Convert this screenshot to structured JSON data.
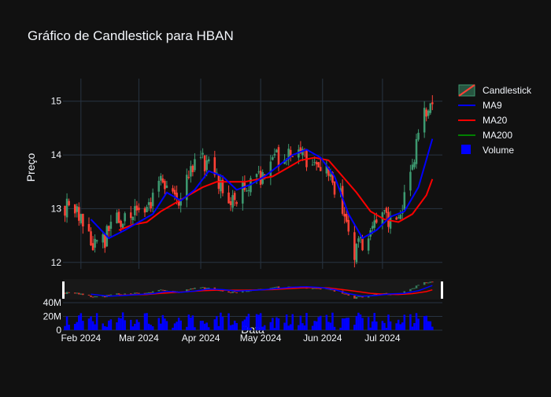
{
  "colors": {
    "background": "#111111",
    "grid": "#283442",
    "text": "#f2f5fa",
    "increasing": "#3d9970",
    "decreasing": "#ff4136",
    "ma9": "#0000ff",
    "ma20": "#ff0000",
    "ma200": "#008000",
    "volume": "#0000ff",
    "rangeslider_bg": "#1f1f1f",
    "handle": "#ffffff"
  },
  "chart_data": {
    "type": "candlestick",
    "title": "Gráfico de Candlestick para HBAN",
    "ylabel": "Preço",
    "xlabel": "Data",
    "ylim": [
      11.88,
      15.42
    ],
    "yticks": [
      "12",
      "13",
      "14",
      "15"
    ],
    "xticks": [
      "Feb 2024",
      "Mar 2024",
      "Apr 2024",
      "May 2024",
      "Jun 2024",
      "Jul 2024"
    ],
    "volume_ticks": [
      "0",
      "20M",
      "40M"
    ],
    "legend": {
      "placement": "right",
      "entries": [
        "Candlestick",
        "MA9",
        "MA20",
        "MA200",
        "Volume"
      ]
    },
    "grid": true,
    "anchors": [
      [
        "2024-01-24",
        13.05
      ],
      [
        "2024-01-29",
        13.05
      ],
      [
        "2024-02-01",
        12.85
      ],
      [
        "2024-02-05",
        12.4
      ],
      [
        "2024-02-12",
        12.35
      ],
      [
        "2024-02-16",
        12.75
      ],
      [
        "2024-02-23",
        12.8
      ],
      [
        "2024-02-29",
        12.95
      ],
      [
        "2024-03-07",
        13.0
      ],
      [
        "2024-03-12",
        13.6
      ],
      [
        "2024-03-15",
        13.3
      ],
      [
        "2024-03-20",
        13.1
      ],
      [
        "2024-03-25",
        13.5
      ],
      [
        "2024-04-01",
        13.95
      ],
      [
        "2024-04-05",
        13.8
      ],
      [
        "2024-04-10",
        13.5
      ],
      [
        "2024-04-16",
        13.1
      ],
      [
        "2024-04-22",
        13.4
      ],
      [
        "2024-04-26",
        13.55
      ],
      [
        "2024-05-01",
        13.6
      ],
      [
        "2024-05-08",
        13.9
      ],
      [
        "2024-05-15",
        14.1
      ],
      [
        "2024-05-20",
        14.2
      ],
      [
        "2024-05-24",
        13.95
      ],
      [
        "2024-05-29",
        13.85
      ],
      [
        "2024-06-03",
        13.7
      ],
      [
        "2024-06-10",
        13.2
      ],
      [
        "2024-06-13",
        12.7
      ],
      [
        "2024-06-17",
        12.2
      ],
      [
        "2024-06-21",
        12.4
      ],
      [
        "2024-06-27",
        12.8
      ],
      [
        "2024-07-03",
        12.8
      ],
      [
        "2024-07-09",
        12.9
      ],
      [
        "2024-07-12",
        13.2
      ],
      [
        "2024-07-17",
        14.0
      ],
      [
        "2024-07-22",
        14.7
      ],
      [
        "2024-07-26",
        15.1
      ]
    ],
    "ma9": [
      [
        "2024-02-06",
        12.8
      ],
      [
        "2024-02-15",
        12.45
      ],
      [
        "2024-02-23",
        12.6
      ],
      [
        "2024-03-01",
        12.75
      ],
      [
        "2024-03-08",
        12.9
      ],
      [
        "2024-03-15",
        13.3
      ],
      [
        "2024-03-22",
        13.15
      ],
      [
        "2024-03-29",
        13.35
      ],
      [
        "2024-04-05",
        13.7
      ],
      [
        "2024-04-12",
        13.6
      ],
      [
        "2024-04-19",
        13.35
      ],
      [
        "2024-04-26",
        13.45
      ],
      [
        "2024-05-03",
        13.6
      ],
      [
        "2024-05-10",
        13.8
      ],
      [
        "2024-05-17",
        14.0
      ],
      [
        "2024-05-24",
        14.1
      ],
      [
        "2024-05-31",
        13.95
      ],
      [
        "2024-06-07",
        13.6
      ],
      [
        "2024-06-14",
        12.9
      ],
      [
        "2024-06-21",
        12.45
      ],
      [
        "2024-06-28",
        12.6
      ],
      [
        "2024-07-05",
        12.85
      ],
      [
        "2024-07-12",
        12.95
      ],
      [
        "2024-07-19",
        13.4
      ],
      [
        "2024-07-26",
        14.3
      ]
    ],
    "ma20": [
      [
        "2024-02-20",
        12.6
      ],
      [
        "2024-02-27",
        12.7
      ],
      [
        "2024-03-05",
        12.75
      ],
      [
        "2024-03-12",
        12.95
      ],
      [
        "2024-03-19",
        13.1
      ],
      [
        "2024-03-26",
        13.25
      ],
      [
        "2024-04-02",
        13.4
      ],
      [
        "2024-04-09",
        13.5
      ],
      [
        "2024-04-16",
        13.5
      ],
      [
        "2024-04-23",
        13.5
      ],
      [
        "2024-04-30",
        13.55
      ],
      [
        "2024-05-07",
        13.6
      ],
      [
        "2024-05-14",
        13.75
      ],
      [
        "2024-05-21",
        13.9
      ],
      [
        "2024-05-28",
        13.95
      ],
      [
        "2024-06-04",
        13.9
      ],
      [
        "2024-06-11",
        13.6
      ],
      [
        "2024-06-18",
        13.3
      ],
      [
        "2024-06-25",
        12.95
      ],
      [
        "2024-07-02",
        12.8
      ],
      [
        "2024-07-09",
        12.75
      ],
      [
        "2024-07-16",
        12.9
      ],
      [
        "2024-07-23",
        13.25
      ],
      [
        "2024-07-26",
        13.55
      ]
    ],
    "volume_range": [
      3000000,
      26000000
    ]
  }
}
